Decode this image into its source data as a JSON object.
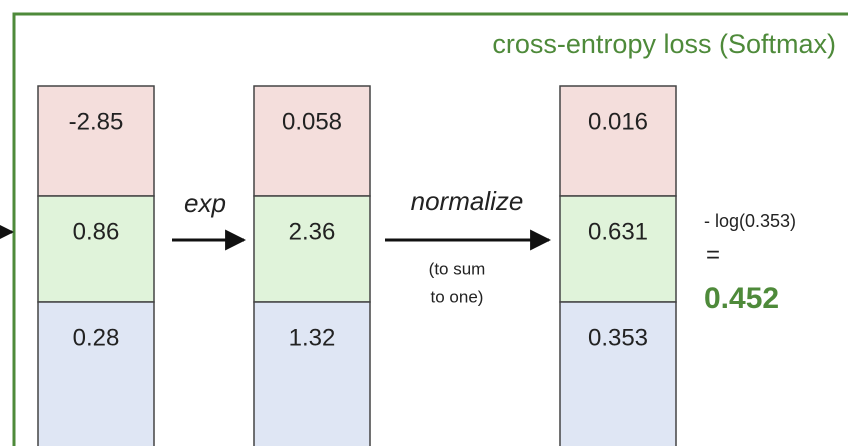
{
  "title": "cross-entropy loss (Softmax)",
  "columns": [
    {
      "cells": [
        "-2.85",
        "0.86",
        "0.28"
      ]
    },
    {
      "cells": [
        "0.058",
        "2.36",
        "1.32"
      ]
    },
    {
      "cells": [
        "0.016",
        "0.631",
        "0.353"
      ]
    }
  ],
  "steps": [
    {
      "label": "exp"
    },
    {
      "label": "normalize",
      "note": [
        "(to sum",
        "to one)"
      ]
    }
  ],
  "result": {
    "expression": "- log(0.353)",
    "equals": "=",
    "value": "0.452"
  }
}
